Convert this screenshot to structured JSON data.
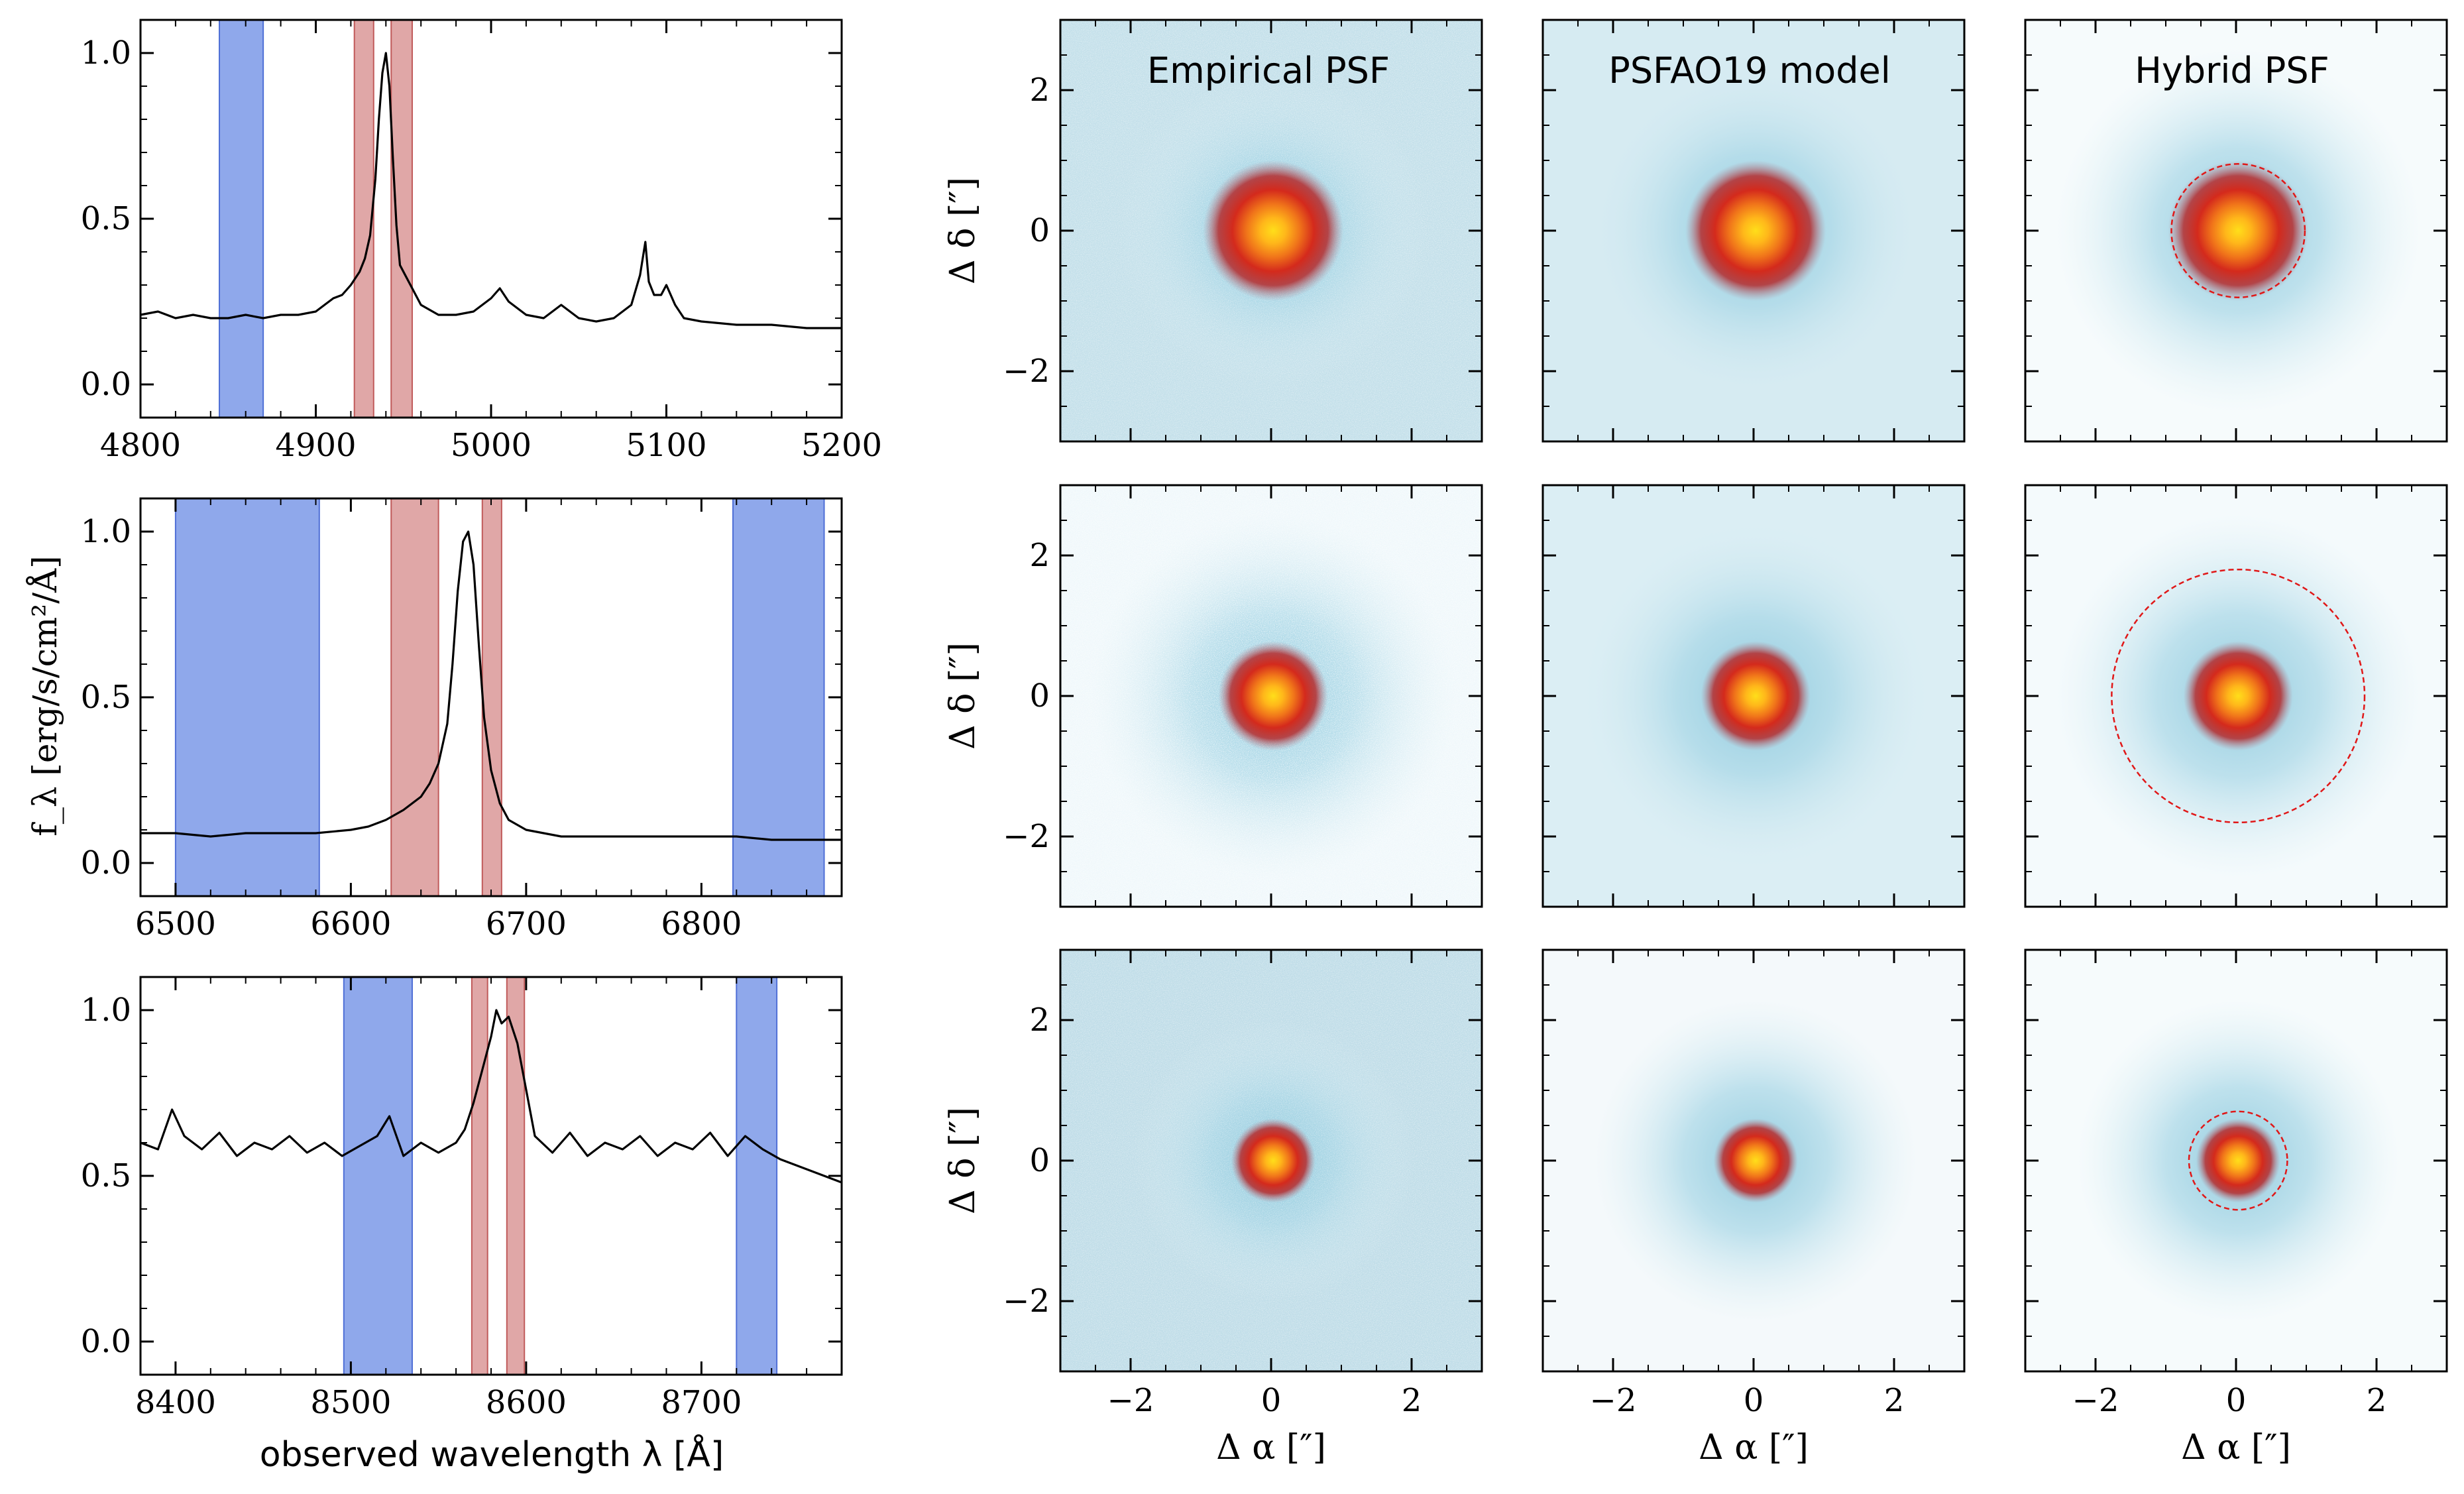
{
  "figure": {
    "colors": {
      "continuum_band": "#6f8fe6",
      "line_band": "#d68a8a",
      "spectrum_line": "#000000",
      "psf_background": "#cfe6ee",
      "psf_core": "#ffd21a",
      "hybrid_circle": "#e01818"
    },
    "column_titles": [
      "Empirical PSF",
      "PSFAO19 model",
      "Hybrid PSF"
    ],
    "spectra_ylabel": "f_λ [erg/s/cm²/Å]",
    "spectra_xlabel": "observed wavelength λ [Å]",
    "psf_ylabel": "Δ δ [″]",
    "psf_xlabel": "Δ α [″]"
  },
  "chart_data": [
    {
      "type": "line",
      "panel": "spectrum-row-1",
      "xlim": [
        4800,
        5200
      ],
      "ylim": [
        -0.1,
        1.1
      ],
      "xticks": [
        4800,
        4900,
        5000,
        5100,
        5200
      ],
      "yticks": [
        0.0,
        0.5,
        1.0
      ],
      "xtick_labels": [
        "4800",
        "4900",
        "5000",
        "5100",
        "5200"
      ],
      "ytick_labels": [
        "0.0",
        "0.5",
        "1.0"
      ],
      "continuum_bands": [
        [
          4845,
          4870
        ]
      ],
      "line_bands": [
        [
          4922,
          4933
        ],
        [
          4943,
          4955
        ]
      ],
      "series": [
        {
          "x": [
            4800,
            4810,
            4820,
            4830,
            4840,
            4850,
            4860,
            4870,
            4880,
            4890,
            4900,
            4905,
            4910,
            4915,
            4920,
            4925,
            4928,
            4931,
            4934,
            4936,
            4938,
            4940,
            4942,
            4944,
            4946,
            4948,
            4951,
            4955,
            4960,
            4970,
            4980,
            4990,
            5000,
            5005,
            5010,
            5020,
            5030,
            5040,
            5050,
            5060,
            5070,
            5080,
            5085,
            5088,
            5090,
            5093,
            5097,
            5100,
            5105,
            5110,
            5120,
            5140,
            5160,
            5180,
            5200
          ],
          "y": [
            0.21,
            0.22,
            0.2,
            0.21,
            0.2,
            0.2,
            0.21,
            0.2,
            0.21,
            0.21,
            0.22,
            0.24,
            0.26,
            0.27,
            0.3,
            0.34,
            0.38,
            0.45,
            0.62,
            0.8,
            0.94,
            1.0,
            0.9,
            0.68,
            0.48,
            0.36,
            0.33,
            0.29,
            0.24,
            0.21,
            0.21,
            0.22,
            0.26,
            0.29,
            0.25,
            0.21,
            0.2,
            0.24,
            0.2,
            0.19,
            0.2,
            0.24,
            0.33,
            0.43,
            0.31,
            0.27,
            0.27,
            0.3,
            0.24,
            0.2,
            0.19,
            0.18,
            0.18,
            0.17,
            0.17
          ]
        }
      ]
    },
    {
      "type": "line",
      "panel": "spectrum-row-2",
      "xlim": [
        6480,
        6880
      ],
      "ylim": [
        -0.1,
        1.1
      ],
      "xticks": [
        6500,
        6600,
        6700,
        6800
      ],
      "yticks": [
        0.0,
        0.5,
        1.0
      ],
      "xtick_labels": [
        "6500",
        "6600",
        "6700",
        "6800"
      ],
      "ytick_labels": [
        "0.0",
        "0.5",
        "1.0"
      ],
      "continuum_bands": [
        [
          6500,
          6582
        ],
        [
          6818,
          6870
        ]
      ],
      "line_bands": [
        [
          6623,
          6650
        ],
        [
          6675,
          6686
        ]
      ],
      "series": [
        {
          "x": [
            6480,
            6500,
            6520,
            6540,
            6560,
            6580,
            6600,
            6610,
            6620,
            6630,
            6640,
            6645,
            6650,
            6655,
            6658,
            6661,
            6664,
            6667,
            6670,
            6673,
            6676,
            6680,
            6685,
            6690,
            6700,
            6720,
            6740,
            6760,
            6780,
            6800,
            6820,
            6840,
            6860,
            6880
          ],
          "y": [
            0.09,
            0.09,
            0.08,
            0.09,
            0.09,
            0.09,
            0.1,
            0.11,
            0.13,
            0.16,
            0.2,
            0.24,
            0.3,
            0.42,
            0.6,
            0.82,
            0.97,
            1.0,
            0.9,
            0.66,
            0.44,
            0.28,
            0.18,
            0.13,
            0.1,
            0.08,
            0.08,
            0.08,
            0.08,
            0.08,
            0.08,
            0.07,
            0.07,
            0.07
          ]
        }
      ]
    },
    {
      "type": "line",
      "panel": "spectrum-row-3",
      "xlim": [
        8380,
        8780
      ],
      "ylim": [
        -0.1,
        1.1
      ],
      "xticks": [
        8400,
        8500,
        8600,
        8700
      ],
      "yticks": [
        0.0,
        0.5,
        1.0
      ],
      "xtick_labels": [
        "8400",
        "8500",
        "8600",
        "8700"
      ],
      "ytick_labels": [
        "0.0",
        "0.5",
        "1.0"
      ],
      "continuum_bands": [
        [
          8496,
          8535
        ],
        [
          8720,
          8743
        ]
      ],
      "line_bands": [
        [
          8569,
          8578
        ],
        [
          8589,
          8599
        ]
      ],
      "series": [
        {
          "x": [
            8380,
            8390,
            8398,
            8405,
            8415,
            8425,
            8435,
            8445,
            8455,
            8465,
            8475,
            8485,
            8495,
            8505,
            8515,
            8522,
            8530,
            8540,
            8550,
            8560,
            8565,
            8570,
            8575,
            8580,
            8583,
            8586,
            8590,
            8595,
            8600,
            8605,
            8615,
            8625,
            8635,
            8645,
            8655,
            8665,
            8675,
            8685,
            8695,
            8705,
            8715,
            8725,
            8735,
            8745,
            8760,
            8780
          ],
          "y": [
            0.6,
            0.58,
            0.7,
            0.62,
            0.58,
            0.63,
            0.56,
            0.6,
            0.58,
            0.62,
            0.57,
            0.6,
            0.56,
            0.59,
            0.62,
            0.68,
            0.56,
            0.6,
            0.57,
            0.6,
            0.64,
            0.72,
            0.82,
            0.92,
            1.0,
            0.96,
            0.98,
            0.9,
            0.76,
            0.62,
            0.57,
            0.63,
            0.56,
            0.6,
            0.58,
            0.62,
            0.56,
            0.6,
            0.58,
            0.63,
            0.56,
            0.62,
            0.58,
            0.55,
            0.52,
            0.48
          ]
        }
      ]
    }
  ],
  "psf_panels": {
    "xlim": [
      -3,
      3
    ],
    "ylim": [
      -3,
      3
    ],
    "ticks": [
      -2,
      0,
      2
    ],
    "tick_labels": [
      "−2",
      "0",
      "2"
    ],
    "core_radius_arcsec": [
      1.0,
      0.78,
      0.6
    ],
    "halo_radius_arcsec": [
      [
        2.2,
        2.4,
        2.6
      ],
      [
        2.6,
        2.5,
        2.6
      ],
      [
        2.0,
        2.3,
        2.3
      ]
    ],
    "hybrid_circle_radius_arcsec": [
      0.95,
      1.8,
      0.7
    ]
  }
}
